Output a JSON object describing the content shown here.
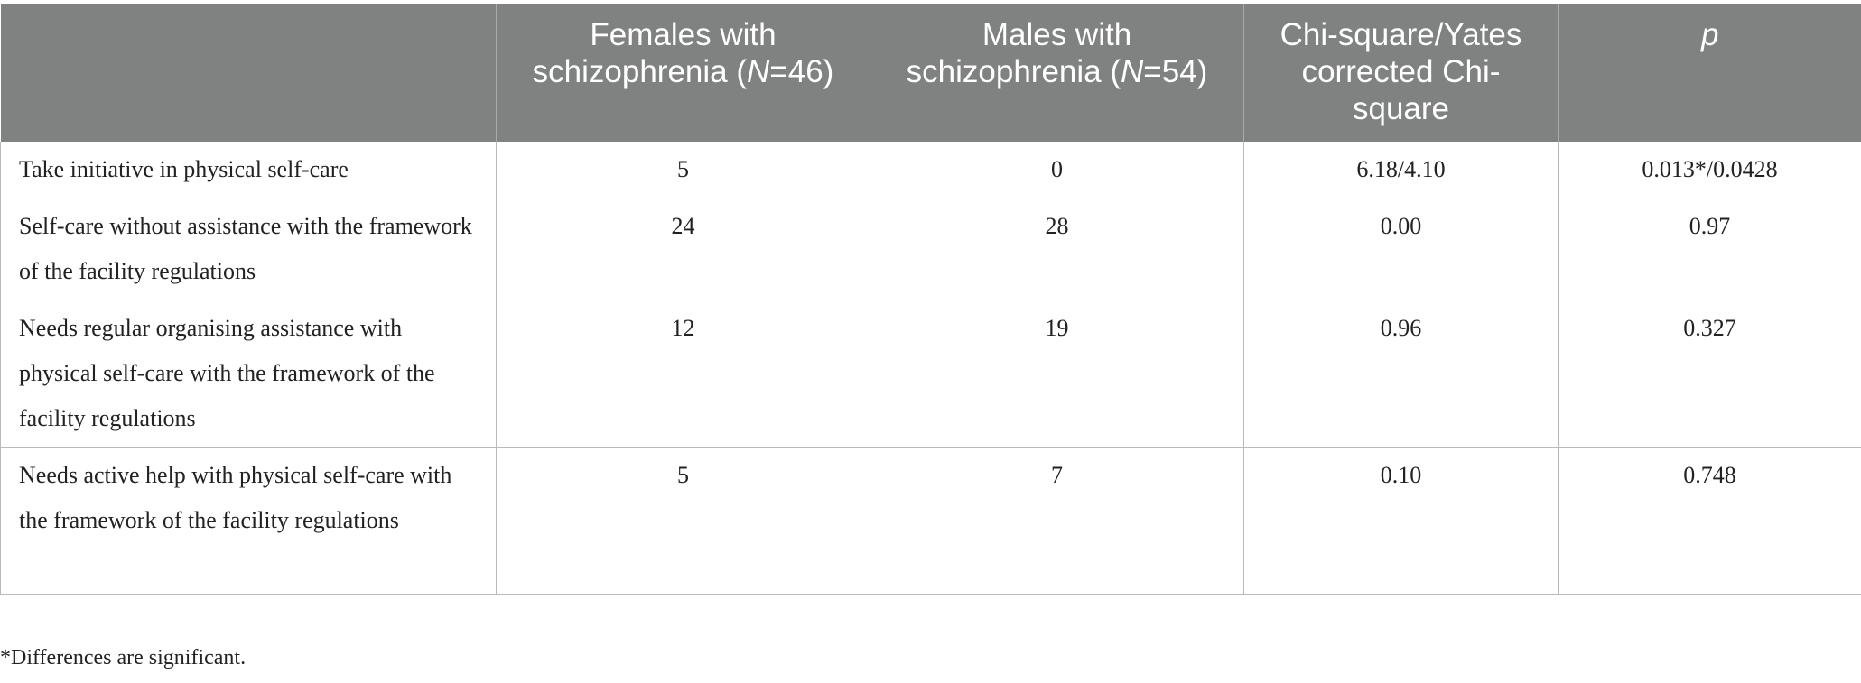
{
  "table": {
    "headers": [
      {
        "text": ""
      },
      {
        "pre": "Females with schizophrenia (",
        "italic": "N",
        "post": "=46)"
      },
      {
        "pre": "Males with schizophrenia (",
        "italic": "N",
        "post": "=54)"
      },
      {
        "pre": "Chi-square/Yates corrected Chi-square",
        "italic": "",
        "post": ""
      },
      {
        "pre": "",
        "italic": "p",
        "post": ""
      }
    ],
    "rows": [
      {
        "label": "Take initiative in physical self-care",
        "females": "5",
        "males": "0",
        "chi": "6.18/4.10",
        "p": "0.013*/0.0428"
      },
      {
        "label": "Self-care without assistance with the framework of the facility regulations",
        "females": "24",
        "males": "28",
        "chi": "0.00",
        "p": "0.97"
      },
      {
        "label": "Needs regular organising assistance with physical self-care with the framework of the facility regulations",
        "females": "12",
        "males": "19",
        "chi": "0.96",
        "p": "0.327"
      },
      {
        "label": "Needs active help with physical self-care with the framework of the facility regulations",
        "females": "5",
        "males": "7",
        "chi": "0.10",
        "p": "0.748"
      }
    ]
  },
  "footnote": "*Differences are significant."
}
